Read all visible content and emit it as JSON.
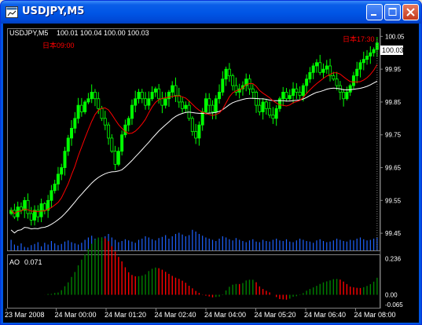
{
  "window": {
    "title": "USDJPY,M5",
    "icon": "chart-window-icon",
    "buttons": {
      "minimize": "minimize-icon",
      "maximize": "maximize-icon",
      "close": "close-icon"
    }
  },
  "chart_info": {
    "symbol": "USDJPY,M5",
    "ohlc": "100.01 100.04 100.00 100.03",
    "start_label": "日本09:00",
    "end_label": "日本17:30",
    "current_price": "100.03"
  },
  "indicator": {
    "name": "AO",
    "value": "0.071"
  },
  "colors": {
    "background": "#000000",
    "bull_candle": "#00FF00",
    "ma_fast": "#FF0000",
    "ma_slow": "#FFFFFF",
    "volume": "#1E62FF",
    "ao_up": "#008000",
    "ao_down": "#FF0000",
    "text": "#FFFFFF",
    "session_label": "#FF0000"
  },
  "chart_data": [
    {
      "type": "candlestick",
      "symbol": "USDJPY",
      "timeframe": "M5",
      "ylim": [
        99.4,
        100.07
      ],
      "y_ticks": [
        "100.05",
        "99.95",
        "99.85",
        "99.75",
        "99.65",
        "99.55",
        "99.45"
      ],
      "x_ticks": [
        "23 Mar 2008",
        "24 Mar 00:00",
        "24 Mar 01:20",
        "24 Mar 02:40",
        "24 Mar 04:00",
        "24 Mar 05:20",
        "24 Mar 06:40",
        "24 Mar 08:00"
      ],
      "closes": [
        99.52,
        99.5,
        99.53,
        99.52,
        99.55,
        99.51,
        99.49,
        99.52,
        99.5,
        99.54,
        99.52,
        99.55,
        99.58,
        99.6,
        99.63,
        99.65,
        99.7,
        99.74,
        99.77,
        99.8,
        99.84,
        99.82,
        99.85,
        99.86,
        99.88,
        99.86,
        99.83,
        99.8,
        99.78,
        99.74,
        99.7,
        99.66,
        99.7,
        99.75,
        99.78,
        99.8,
        99.84,
        99.86,
        99.88,
        99.86,
        99.84,
        99.86,
        99.88,
        99.89,
        99.86,
        99.84,
        99.86,
        99.88,
        99.9,
        99.87,
        99.85,
        99.83,
        99.84,
        99.8,
        99.76,
        99.74,
        99.78,
        99.82,
        99.86,
        99.84,
        99.82,
        99.86,
        99.88,
        99.92,
        99.95,
        99.93,
        99.9,
        99.88,
        99.89,
        99.9,
        99.92,
        99.89,
        99.88,
        99.84,
        99.82,
        99.85,
        99.83,
        99.81,
        99.8,
        99.83,
        99.86,
        99.88,
        99.86,
        99.87,
        99.89,
        99.88,
        99.87,
        99.9,
        99.92,
        99.94,
        99.96,
        99.97,
        99.94,
        99.95,
        99.96,
        99.93,
        99.92,
        99.9,
        99.88,
        99.86,
        99.88,
        99.9,
        99.93,
        99.95,
        99.97,
        99.98,
        99.99,
        100.0,
        100.01,
        100.03
      ],
      "ma_fast": {
        "color": "red"
      },
      "ma_slow": {
        "color": "white"
      },
      "volume": [
        18,
        10,
        8,
        12,
        6,
        5,
        9,
        11,
        14,
        7,
        13,
        10,
        16,
        12,
        9,
        11,
        15,
        17,
        14,
        12,
        10,
        13,
        18,
        22,
        25,
        20,
        18,
        16,
        24,
        28,
        22,
        18,
        14,
        16,
        19,
        17,
        15,
        13,
        18,
        20,
        24,
        22,
        19,
        17,
        21,
        23,
        26,
        20,
        24,
        28,
        30,
        27,
        24,
        26,
        35,
        32,
        28,
        25,
        22,
        20,
        18,
        16,
        20,
        24,
        22,
        19,
        17,
        21,
        18,
        16,
        14,
        17,
        19,
        15,
        14,
        18,
        16,
        15,
        18,
        20,
        17,
        16,
        19,
        15,
        14,
        17,
        20,
        18,
        16,
        15,
        13,
        17,
        19,
        16,
        14,
        15,
        17,
        20,
        18,
        16,
        15,
        18,
        17,
        20,
        22,
        19,
        17,
        18,
        20,
        22
      ]
    },
    {
      "type": "bar",
      "name": "AO",
      "value_label": "0.071",
      "ylim": [
        -0.08,
        0.25
      ],
      "y_ticks": [
        "0.236",
        "0.00",
        "-0.065"
      ]
    }
  ]
}
